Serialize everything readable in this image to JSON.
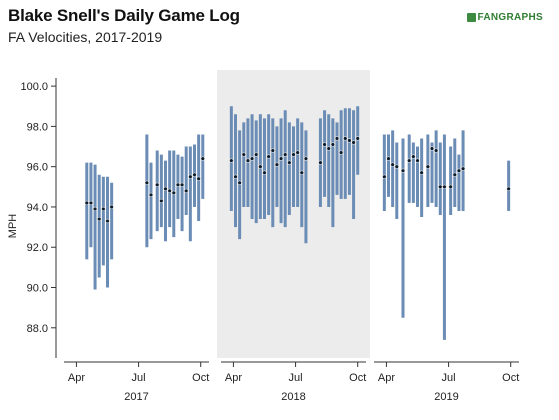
{
  "header": {
    "title": "Blake Snell's Daily Game Log",
    "subtitle": "FA Velocities, 2017-2019",
    "logo_text": "FANGRAPHS"
  },
  "chart_data": {
    "type": "scatter",
    "ylabel": "MPH",
    "ylim": [
      86.5,
      100.8
    ],
    "yticks": [
      "100.0",
      "98.0",
      "96.0",
      "94.0",
      "92.0",
      "90.0",
      "88.0"
    ],
    "shaded_panel": "2018",
    "colors": {
      "range_bar": "#6b8db5",
      "point": "#0d1b2a",
      "shade": "#ececec"
    },
    "panels": [
      {
        "year": "2017",
        "month_ticks": [
          "Apr",
          "Jul",
          "Oct"
        ],
        "games": [
          {
            "month": 4.5,
            "avg": 94.2,
            "min": 91.4,
            "max": 96.2
          },
          {
            "month": 4.7,
            "avg": 94.2,
            "min": 92.0,
            "max": 96.2
          },
          {
            "month": 4.9,
            "avg": 93.9,
            "min": 89.9,
            "max": 96.1
          },
          {
            "month": 5.1,
            "avg": 93.4,
            "min": 90.5,
            "max": 95.6
          },
          {
            "month": 5.3,
            "avg": 93.9,
            "min": 91.1,
            "max": 95.5
          },
          {
            "month": 5.5,
            "avg": 93.3,
            "min": 90.0,
            "max": 95.5
          },
          {
            "month": 5.7,
            "avg": 94.0,
            "min": 91.4,
            "max": 95.2
          },
          {
            "month": 7.4,
            "avg": 95.2,
            "min": 92.0,
            "max": 97.6
          },
          {
            "month": 7.6,
            "avg": 94.6,
            "min": 92.4,
            "max": 96.2
          },
          {
            "month": 7.9,
            "avg": 95.1,
            "min": 92.8,
            "max": 96.8
          },
          {
            "month": 8.1,
            "avg": 94.3,
            "min": 93.0,
            "max": 96.6
          },
          {
            "month": 8.3,
            "avg": 94.9,
            "min": 92.3,
            "max": 96.3
          },
          {
            "month": 8.5,
            "avg": 94.8,
            "min": 93.0,
            "max": 96.8
          },
          {
            "month": 8.7,
            "avg": 94.7,
            "min": 92.5,
            "max": 96.8
          },
          {
            "month": 8.9,
            "avg": 95.1,
            "min": 93.4,
            "max": 96.6
          },
          {
            "month": 9.1,
            "avg": 95.1,
            "min": 92.8,
            "max": 96.5
          },
          {
            "month": 9.3,
            "avg": 94.8,
            "min": 93.6,
            "max": 97.0
          },
          {
            "month": 9.5,
            "avg": 95.5,
            "min": 92.3,
            "max": 97.0
          },
          {
            "month": 9.7,
            "avg": 95.6,
            "min": 94.0,
            "max": 97.1
          },
          {
            "month": 9.9,
            "avg": 95.4,
            "min": 93.3,
            "max": 97.6
          },
          {
            "month": 10.1,
            "avg": 96.4,
            "min": 94.4,
            "max": 97.6
          }
        ]
      },
      {
        "year": "2018",
        "month_ticks": [
          "Apr",
          "Jul",
          "Oct"
        ],
        "games": [
          {
            "month": 3.9,
            "avg": 96.3,
            "min": 93.8,
            "max": 99.0
          },
          {
            "month": 4.1,
            "avg": 95.5,
            "min": 93.0,
            "max": 98.6
          },
          {
            "month": 4.3,
            "avg": 95.2,
            "min": 92.4,
            "max": 97.8
          },
          {
            "month": 4.5,
            "avg": 96.6,
            "min": 94.0,
            "max": 98.2
          },
          {
            "month": 4.7,
            "avg": 96.3,
            "min": 94.0,
            "max": 98.4
          },
          {
            "month": 4.9,
            "avg": 96.4,
            "min": 93.4,
            "max": 98.6
          },
          {
            "month": 5.1,
            "avg": 96.6,
            "min": 93.2,
            "max": 98.3
          },
          {
            "month": 5.3,
            "avg": 96.0,
            "min": 93.4,
            "max": 98.6
          },
          {
            "month": 5.5,
            "avg": 95.7,
            "min": 93.4,
            "max": 98.4
          },
          {
            "month": 5.7,
            "avg": 96.5,
            "min": 93.6,
            "max": 98.6
          },
          {
            "month": 5.9,
            "avg": 96.8,
            "min": 93.0,
            "max": 98.4
          },
          {
            "month": 6.1,
            "avg": 96.1,
            "min": 94.0,
            "max": 98.0
          },
          {
            "month": 6.3,
            "avg": 96.4,
            "min": 93.2,
            "max": 98.4
          },
          {
            "month": 6.5,
            "avg": 96.6,
            "min": 93.0,
            "max": 98.8
          },
          {
            "month": 6.7,
            "avg": 96.2,
            "min": 93.6,
            "max": 98.2
          },
          {
            "month": 6.9,
            "avg": 96.6,
            "min": 94.0,
            "max": 98.0
          },
          {
            "month": 7.1,
            "avg": 96.7,
            "min": 94.0,
            "max": 98.4
          },
          {
            "month": 7.3,
            "avg": 95.7,
            "min": 93.0,
            "max": 98.2
          },
          {
            "month": 7.5,
            "avg": 96.4,
            "min": 92.2,
            "max": 97.8
          },
          {
            "month": 8.2,
            "avg": 96.2,
            "min": 94.0,
            "max": 98.4
          },
          {
            "month": 8.4,
            "avg": 97.1,
            "min": 94.5,
            "max": 98.8
          },
          {
            "month": 8.6,
            "avg": 96.9,
            "min": 94.0,
            "max": 98.6
          },
          {
            "month": 8.8,
            "avg": 97.1,
            "min": 93.0,
            "max": 98.4
          },
          {
            "month": 9.0,
            "avg": 97.4,
            "min": 94.6,
            "max": 98.2
          },
          {
            "month": 9.2,
            "avg": 96.7,
            "min": 94.4,
            "max": 98.8
          },
          {
            "month": 9.4,
            "avg": 97.4,
            "min": 94.4,
            "max": 98.9
          },
          {
            "month": 9.6,
            "avg": 97.3,
            "min": 94.6,
            "max": 98.9
          },
          {
            "month": 9.8,
            "avg": 97.2,
            "min": 93.4,
            "max": 98.8
          },
          {
            "month": 10.0,
            "avg": 97.4,
            "min": 95.6,
            "max": 99.0
          }
        ]
      },
      {
        "year": "2019",
        "month_ticks": [
          "Apr",
          "Jul",
          "Oct"
        ],
        "games": [
          {
            "month": 3.9,
            "avg": 95.5,
            "min": 93.8,
            "max": 97.6
          },
          {
            "month": 4.1,
            "avg": 96.4,
            "min": 94.5,
            "max": 97.6
          },
          {
            "month": 4.3,
            "avg": 96.1,
            "min": 94.0,
            "max": 97.8
          },
          {
            "month": 4.5,
            "avg": 96.0,
            "min": 93.4,
            "max": 97.2
          },
          {
            "month": 4.8,
            "avg": 95.8,
            "min": 88.5,
            "max": 97.4
          },
          {
            "month": 5.1,
            "avg": 96.3,
            "min": 94.2,
            "max": 97.6
          },
          {
            "month": 5.3,
            "avg": 96.5,
            "min": 94.2,
            "max": 97.2
          },
          {
            "month": 5.5,
            "avg": 96.3,
            "min": 94.0,
            "max": 97.0
          },
          {
            "month": 5.7,
            "avg": 95.7,
            "min": 93.5,
            "max": 97.4
          },
          {
            "month": 6.0,
            "avg": 96.0,
            "min": 94.0,
            "max": 97.6
          },
          {
            "month": 6.2,
            "avg": 96.9,
            "min": 94.2,
            "max": 97.2
          },
          {
            "month": 6.4,
            "avg": 96.8,
            "min": 94.0,
            "max": 97.8
          },
          {
            "month": 6.6,
            "avg": 95.0,
            "min": 93.6,
            "max": 97.2
          },
          {
            "month": 6.8,
            "avg": 95.0,
            "min": 87.4,
            "max": 97.6
          },
          {
            "month": 7.1,
            "avg": 95.0,
            "min": 93.6,
            "max": 97.0
          },
          {
            "month": 7.3,
            "avg": 95.6,
            "min": 94.0,
            "max": 97.4
          },
          {
            "month": 7.5,
            "avg": 95.8,
            "min": 93.8,
            "max": 96.6
          },
          {
            "month": 7.7,
            "avg": 95.9,
            "min": 93.8,
            "max": 97.8
          },
          {
            "month": 9.9,
            "avg": 94.9,
            "min": 93.8,
            "max": 96.3
          }
        ]
      }
    ]
  }
}
